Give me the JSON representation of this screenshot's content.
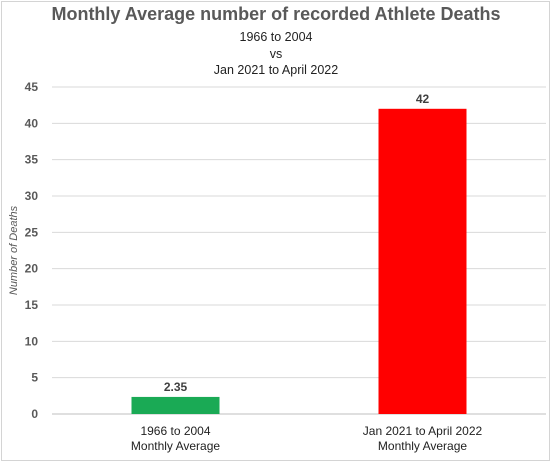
{
  "chart_data": {
    "type": "bar",
    "title": "Monthly Average number of recorded Athlete Deaths",
    "subtitle": [
      "1966 to 2004",
      "vs",
      "Jan 2021 to April 2022"
    ],
    "ylabel": "Number of Deaths",
    "xlabel": "",
    "ylim": [
      0,
      45
    ],
    "yticks": [
      0,
      5,
      10,
      15,
      20,
      25,
      30,
      35,
      40,
      45
    ],
    "grid": true,
    "categories": [
      [
        "1966 to 2004",
        "Monthly Average"
      ],
      [
        "Jan 2021 to April 2022",
        "Monthly Average"
      ]
    ],
    "values": [
      2.35,
      42
    ],
    "data_labels": [
      "2.35",
      "42"
    ],
    "colors": [
      "#1aaa55",
      "#ff0000"
    ]
  }
}
